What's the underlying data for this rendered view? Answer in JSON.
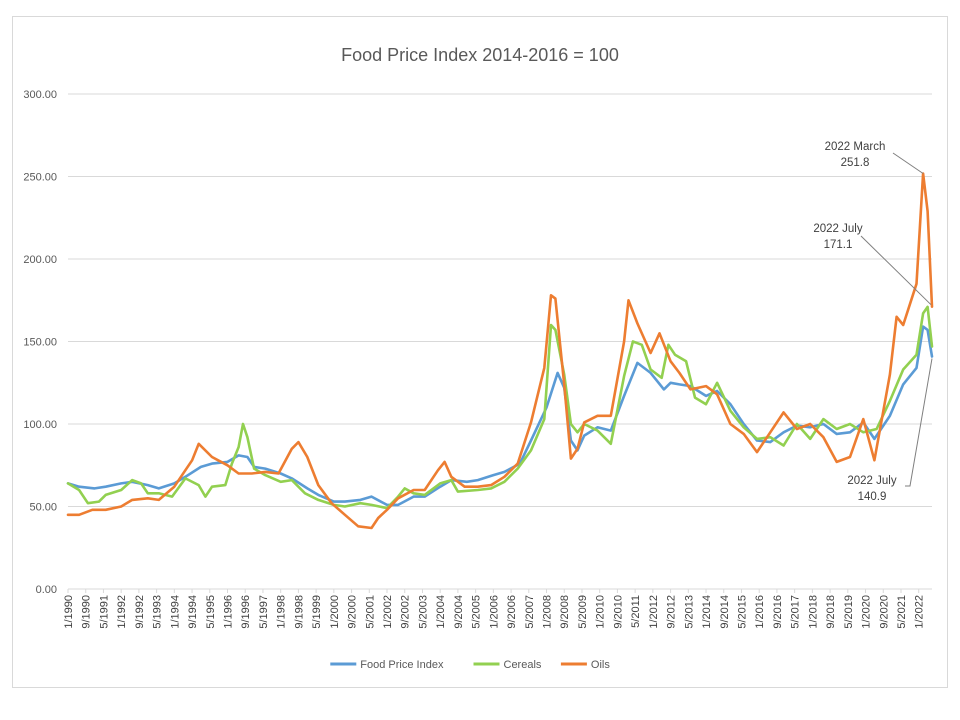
{
  "chart_data": {
    "type": "line",
    "title": "Food Price Index 2014-2016 = 100",
    "xlabel": "",
    "ylabel": "",
    "ylim": [
      0,
      300
    ],
    "yticks": [
      "0.00",
      "50.00",
      "100.00",
      "150.00",
      "200.00",
      "250.00",
      "300.00"
    ],
    "xtick_labels": [
      "1/1990",
      "9/1990",
      "5/1991",
      "1/1992",
      "9/1992",
      "5/1993",
      "1/1994",
      "9/1994",
      "5/1995",
      "1/1996",
      "9/1996",
      "5/1997",
      "1/1998",
      "9/1998",
      "5/1999",
      "1/2000",
      "9/2000",
      "5/2001",
      "1/2002",
      "9/2002",
      "5/2003",
      "1/2004",
      "9/2004",
      "5/2005",
      "1/2006",
      "9/2006",
      "5/2007",
      "1/2008",
      "9/2008",
      "5/2009",
      "1/2010",
      "9/2010",
      "5/2011",
      "1/2012",
      "9/2012",
      "5/2013",
      "1/2014",
      "9/2014",
      "5/2015",
      "1/2016",
      "9/2016",
      "5/2017",
      "1/2018",
      "9/2018",
      "5/2019",
      "1/2020",
      "9/2020",
      "5/2021",
      "1/2022"
    ],
    "x_range": [
      "1990-01",
      "2022-07"
    ],
    "grid": "horizontal",
    "legend_position": "bottom",
    "series": [
      {
        "name": "Food Price Index",
        "color": "#5b9bd5",
        "points": [
          [
            "1990-01",
            64
          ],
          [
            "1990-06",
            62
          ],
          [
            "1991-01",
            61
          ],
          [
            "1991-06",
            62
          ],
          [
            "1992-01",
            64
          ],
          [
            "1992-06",
            65
          ],
          [
            "1993-01",
            63
          ],
          [
            "1993-06",
            61
          ],
          [
            "1994-01",
            64
          ],
          [
            "1994-06",
            68
          ],
          [
            "1995-01",
            74
          ],
          [
            "1995-06",
            76
          ],
          [
            "1996-01",
            77
          ],
          [
            "1996-06",
            81
          ],
          [
            "1996-10",
            80
          ],
          [
            "1997-01",
            74
          ],
          [
            "1997-06",
            73
          ],
          [
            "1998-01",
            70
          ],
          [
            "1998-06",
            67
          ],
          [
            "1999-01",
            61
          ],
          [
            "1999-06",
            57
          ],
          [
            "2000-01",
            53
          ],
          [
            "2000-06",
            53
          ],
          [
            "2001-01",
            54
          ],
          [
            "2001-06",
            56
          ],
          [
            "2002-01",
            51
          ],
          [
            "2002-06",
            51
          ],
          [
            "2003-01",
            56
          ],
          [
            "2003-06",
            56
          ],
          [
            "2004-01",
            62
          ],
          [
            "2004-06",
            66
          ],
          [
            "2005-01",
            65
          ],
          [
            "2005-06",
            66
          ],
          [
            "2006-01",
            69
          ],
          [
            "2006-06",
            71
          ],
          [
            "2007-01",
            76
          ],
          [
            "2007-06",
            90
          ],
          [
            "2008-01",
            110
          ],
          [
            "2008-06",
            131
          ],
          [
            "2008-09",
            122
          ],
          [
            "2008-12",
            90
          ],
          [
            "2009-03",
            84
          ],
          [
            "2009-06",
            93
          ],
          [
            "2009-12",
            98
          ],
          [
            "2010-06",
            96
          ],
          [
            "2010-12",
            117
          ],
          [
            "2011-06",
            137
          ],
          [
            "2011-12",
            131
          ],
          [
            "2012-06",
            121
          ],
          [
            "2012-09",
            125
          ],
          [
            "2013-01",
            124
          ],
          [
            "2013-06",
            123
          ],
          [
            "2014-01",
            117
          ],
          [
            "2014-06",
            120
          ],
          [
            "2014-12",
            112
          ],
          [
            "2015-06",
            100
          ],
          [
            "2015-12",
            90
          ],
          [
            "2016-06",
            89
          ],
          [
            "2016-12",
            95
          ],
          [
            "2017-06",
            99
          ],
          [
            "2017-12",
            98
          ],
          [
            "2018-06",
            100
          ],
          [
            "2018-12",
            94
          ],
          [
            "2019-06",
            95
          ],
          [
            "2019-12",
            101
          ],
          [
            "2020-05",
            91
          ],
          [
            "2020-12",
            105
          ],
          [
            "2021-06",
            124
          ],
          [
            "2021-12",
            134
          ],
          [
            "2022-03",
            159
          ],
          [
            "2022-05",
            157
          ],
          [
            "2022-07",
            140.9
          ]
        ]
      },
      {
        "name": "Cereals",
        "color": "#92d050",
        "points": [
          [
            "1990-01",
            64
          ],
          [
            "1990-06",
            60
          ],
          [
            "1990-10",
            52
          ],
          [
            "1991-03",
            53
          ],
          [
            "1991-06",
            57
          ],
          [
            "1992-01",
            60
          ],
          [
            "1992-06",
            66
          ],
          [
            "1992-10",
            64
          ],
          [
            "1993-01",
            58
          ],
          [
            "1993-06",
            58
          ],
          [
            "1993-12",
            56
          ],
          [
            "1994-06",
            67
          ],
          [
            "1994-12",
            63
          ],
          [
            "1995-03",
            56
          ],
          [
            "1995-06",
            62
          ],
          [
            "1995-12",
            63
          ],
          [
            "1996-03",
            76
          ],
          [
            "1996-06",
            86
          ],
          [
            "1996-08",
            100
          ],
          [
            "1996-10",
            92
          ],
          [
            "1997-01",
            73
          ],
          [
            "1997-06",
            69
          ],
          [
            "1998-01",
            65
          ],
          [
            "1998-06",
            66
          ],
          [
            "1998-12",
            58
          ],
          [
            "1999-06",
            54
          ],
          [
            "2000-01",
            51
          ],
          [
            "2000-06",
            50
          ],
          [
            "2001-01",
            52
          ],
          [
            "2001-06",
            51
          ],
          [
            "2002-01",
            49
          ],
          [
            "2002-06",
            56
          ],
          [
            "2002-09",
            61
          ],
          [
            "2003-01",
            58
          ],
          [
            "2003-06",
            57
          ],
          [
            "2004-01",
            64
          ],
          [
            "2004-06",
            66
          ],
          [
            "2004-09",
            59
          ],
          [
            "2005-06",
            60
          ],
          [
            "2005-12",
            61
          ],
          [
            "2006-06",
            65
          ],
          [
            "2006-12",
            73
          ],
          [
            "2007-06",
            84
          ],
          [
            "2007-12",
            103
          ],
          [
            "2008-03",
            160
          ],
          [
            "2008-05",
            157
          ],
          [
            "2008-09",
            130
          ],
          [
            "2008-12",
            100
          ],
          [
            "2009-03",
            95
          ],
          [
            "2009-06",
            100
          ],
          [
            "2009-12",
            96
          ],
          [
            "2010-06",
            88
          ],
          [
            "2010-12",
            129
          ],
          [
            "2011-04",
            150
          ],
          [
            "2011-08",
            148
          ],
          [
            "2011-12",
            133
          ],
          [
            "2012-05",
            128
          ],
          [
            "2012-08",
            148
          ],
          [
            "2012-11",
            142
          ],
          [
            "2013-04",
            138
          ],
          [
            "2013-08",
            116
          ],
          [
            "2014-01",
            112
          ],
          [
            "2014-06",
            125
          ],
          [
            "2014-12",
            108
          ],
          [
            "2015-06",
            98
          ],
          [
            "2015-12",
            91
          ],
          [
            "2016-06",
            92
          ],
          [
            "2016-12",
            87
          ],
          [
            "2017-06",
            100
          ],
          [
            "2017-12",
            91
          ],
          [
            "2018-06",
            103
          ],
          [
            "2018-12",
            97
          ],
          [
            "2019-06",
            100
          ],
          [
            "2019-12",
            95
          ],
          [
            "2020-06",
            97
          ],
          [
            "2020-12",
            114
          ],
          [
            "2021-06",
            133
          ],
          [
            "2021-12",
            142
          ],
          [
            "2022-03",
            167
          ],
          [
            "2022-05",
            171
          ],
          [
            "2022-07",
            147
          ]
        ]
      },
      {
        "name": "Oils",
        "color": "#ed7d31",
        "points": [
          [
            "1990-01",
            45
          ],
          [
            "1990-06",
            45
          ],
          [
            "1990-12",
            48
          ],
          [
            "1991-06",
            48
          ],
          [
            "1992-01",
            50
          ],
          [
            "1992-06",
            54
          ],
          [
            "1993-01",
            55
          ],
          [
            "1993-06",
            54
          ],
          [
            "1994-01",
            62
          ],
          [
            "1994-06",
            72
          ],
          [
            "1994-09",
            78
          ],
          [
            "1994-12",
            88
          ],
          [
            "1995-06",
            80
          ],
          [
            "1996-01",
            75
          ],
          [
            "1996-06",
            70
          ],
          [
            "1996-12",
            70
          ],
          [
            "1997-06",
            71
          ],
          [
            "1997-12",
            70
          ],
          [
            "1998-06",
            85
          ],
          [
            "1998-09",
            89
          ],
          [
            "1999-01",
            80
          ],
          [
            "1999-06",
            63
          ],
          [
            "1999-12",
            52
          ],
          [
            "2000-06",
            45
          ],
          [
            "2000-12",
            38
          ],
          [
            "2001-06",
            37
          ],
          [
            "2001-09",
            43
          ],
          [
            "2002-01",
            48
          ],
          [
            "2002-06",
            55
          ],
          [
            "2003-01",
            60
          ],
          [
            "2003-06",
            60
          ],
          [
            "2003-12",
            72
          ],
          [
            "2004-03",
            77
          ],
          [
            "2004-06",
            68
          ],
          [
            "2004-12",
            62
          ],
          [
            "2005-06",
            62
          ],
          [
            "2005-12",
            63
          ],
          [
            "2006-06",
            68
          ],
          [
            "2006-12",
            76
          ],
          [
            "2007-06",
            101
          ],
          [
            "2007-12",
            134
          ],
          [
            "2008-03",
            178
          ],
          [
            "2008-05",
            176
          ],
          [
            "2008-09",
            124
          ],
          [
            "2008-12",
            79
          ],
          [
            "2009-03",
            85
          ],
          [
            "2009-06",
            101
          ],
          [
            "2009-12",
            105
          ],
          [
            "2010-06",
            105
          ],
          [
            "2010-12",
            150
          ],
          [
            "2011-02",
            175
          ],
          [
            "2011-06",
            161
          ],
          [
            "2011-12",
            143
          ],
          [
            "2012-04",
            155
          ],
          [
            "2012-09",
            138
          ],
          [
            "2013-01",
            131
          ],
          [
            "2013-06",
            121
          ],
          [
            "2014-01",
            123
          ],
          [
            "2014-06",
            118
          ],
          [
            "2014-12",
            100
          ],
          [
            "2015-06",
            94
          ],
          [
            "2015-12",
            83
          ],
          [
            "2016-06",
            95
          ],
          [
            "2016-12",
            107
          ],
          [
            "2017-06",
            97
          ],
          [
            "2017-12",
            100
          ],
          [
            "2018-06",
            92
          ],
          [
            "2018-12",
            77
          ],
          [
            "2019-06",
            80
          ],
          [
            "2019-12",
            103
          ],
          [
            "2020-05",
            78
          ],
          [
            "2020-12",
            130
          ],
          [
            "2021-03",
            165
          ],
          [
            "2021-06",
            160
          ],
          [
            "2021-12",
            185
          ],
          [
            "2022-03",
            251.8
          ],
          [
            "2022-05",
            229
          ],
          [
            "2022-07",
            171.1
          ]
        ]
      }
    ],
    "annotations": [
      {
        "line1": "2022 March",
        "line2": "251.8",
        "series": "Oils",
        "date": "2022-03",
        "value": 251.8
      },
      {
        "line1": "2022 July",
        "line2": "171.1",
        "series": "Oils",
        "date": "2022-07",
        "value": 171.1
      },
      {
        "line1": "2022 July",
        "line2": "140.9",
        "series": "Food Price Index",
        "date": "2022-07",
        "value": 140.9
      }
    ]
  }
}
